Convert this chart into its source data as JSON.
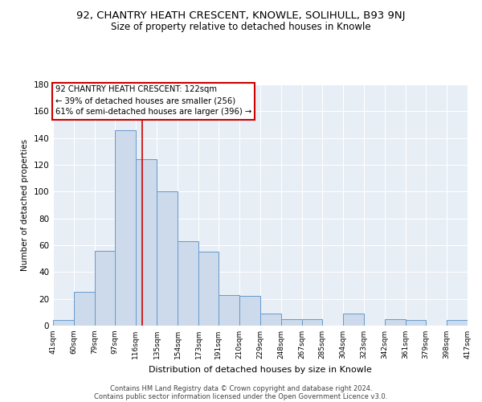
{
  "title": "92, CHANTRY HEATH CRESCENT, KNOWLE, SOLIHULL, B93 9NJ",
  "subtitle": "Size of property relative to detached houses in Knowle",
  "xlabel": "Distribution of detached houses by size in Knowle",
  "ylabel": "Number of detached properties",
  "bar_color": "#ccdaeb",
  "bar_edge_color": "#6699cc",
  "bin_edges": [
    41,
    60,
    79,
    97,
    116,
    135,
    154,
    173,
    191,
    210,
    229,
    248,
    267,
    285,
    304,
    323,
    342,
    361,
    379,
    398,
    417
  ],
  "bar_heights": [
    4,
    25,
    56,
    146,
    124,
    100,
    63,
    55,
    23,
    22,
    9,
    5,
    5,
    0,
    9,
    0,
    5,
    4,
    0,
    4
  ],
  "tick_labels": [
    "41sqm",
    "60sqm",
    "79sqm",
    "97sqm",
    "116sqm",
    "135sqm",
    "154sqm",
    "173sqm",
    "191sqm",
    "210sqm",
    "229sqm",
    "248sqm",
    "267sqm",
    "285sqm",
    "304sqm",
    "323sqm",
    "342sqm",
    "361sqm",
    "379sqm",
    "398sqm",
    "417sqm"
  ],
  "vline_x": 122,
  "vline_color": "#cc0000",
  "annotation_line1": "92 CHANTRY HEATH CRESCENT: 122sqm",
  "annotation_line2": "← 39% of detached houses are smaller (256)",
  "annotation_line3": "61% of semi-detached houses are larger (396) →",
  "annotation_box_color": "#ffffff",
  "annotation_box_edge": "#cc0000",
  "ylim": [
    0,
    180
  ],
  "background_color": "#e8eef5",
  "grid_color": "#ffffff",
  "footer_line1": "Contains HM Land Registry data © Crown copyright and database right 2024.",
  "footer_line2": "Contains public sector information licensed under the Open Government Licence v3.0.",
  "title_fontsize": 9.5,
  "subtitle_fontsize": 8.5,
  "yticks": [
    0,
    20,
    40,
    60,
    80,
    100,
    120,
    140,
    160,
    180
  ]
}
